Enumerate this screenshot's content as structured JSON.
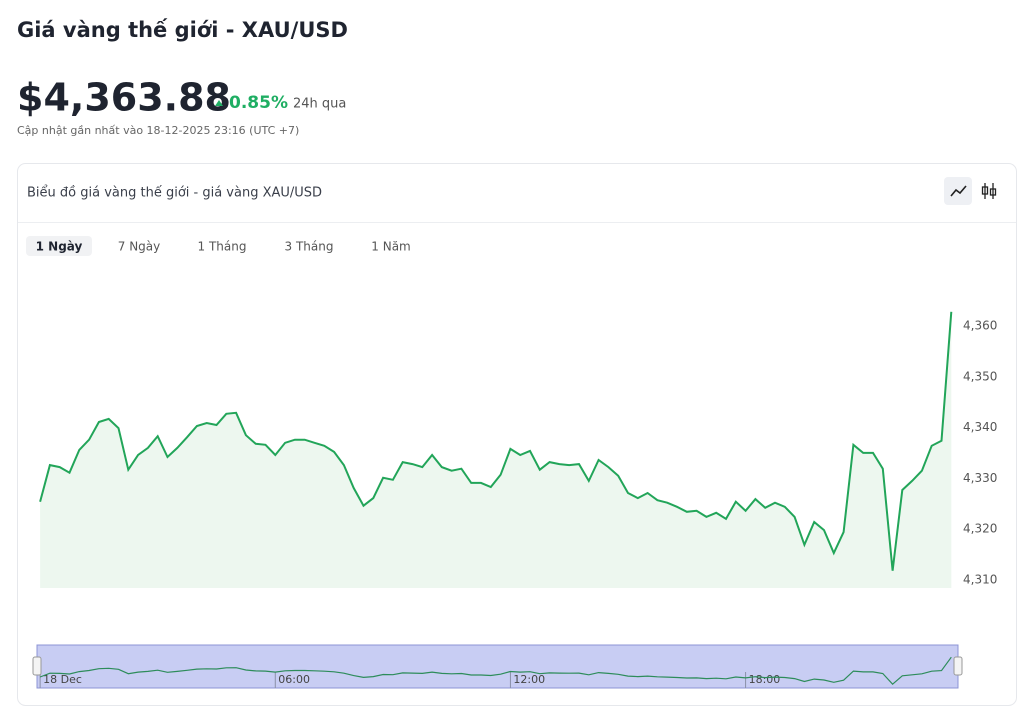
{
  "header": {
    "title": "Giá vàng thế giới - XAU/USD",
    "price": "$4,363.88",
    "change": "0.85%",
    "period": "24h qua",
    "updated": "Cập nhật gần nhất vào 18-12-2025 23:16 (UTC +7)"
  },
  "card": {
    "title": "Biểu đồ giá vàng thế giới - giá vàng XAU/USD",
    "tabs": [
      "1 Ngày",
      "7 Ngày",
      "1 Tháng",
      "3 Tháng",
      "1 Năm"
    ]
  },
  "chart_data": {
    "type": "line",
    "color": "#22a559",
    "area_color": "#edf7ef",
    "x": [
      0,
      0.25,
      0.5,
      0.75,
      1,
      1.25,
      1.5,
      1.75,
      2,
      2.25,
      2.5,
      2.75,
      3,
      3.25,
      3.5,
      3.75,
      4,
      4.25,
      4.5,
      4.75,
      5,
      5.25,
      5.5,
      5.75,
      6,
      6.25,
      6.5,
      6.75,
      7,
      7.25,
      7.5,
      7.75,
      8,
      8.25,
      8.5,
      8.75,
      9,
      9.25,
      9.5,
      9.75,
      10,
      10.25,
      10.5,
      10.75,
      11,
      11.25,
      11.5,
      11.75,
      12,
      12.25,
      12.5,
      12.75,
      13,
      13.25,
      13.5,
      13.75,
      14,
      14.25,
      14.5,
      14.75,
      15,
      15.25,
      15.5,
      15.75,
      16,
      16.25,
      16.5,
      16.75,
      17,
      17.25,
      17.5,
      17.75,
      18,
      18.25,
      18.5,
      18.75,
      19,
      19.25,
      19.5,
      19.75,
      20,
      20.25,
      20.5,
      20.75,
      21,
      21.25,
      21.5,
      21.75,
      22,
      22.25,
      22.5,
      22.75,
      23,
      23.25
    ],
    "values": [
      4325.4,
      4332.6,
      4332.2,
      4331.1,
      4335.6,
      4337.6,
      4341.1,
      4341.7,
      4339.9,
      4331.7,
      4334.6,
      4336.0,
      4338.3,
      4334.2,
      4336.0,
      4338.1,
      4340.3,
      4340.9,
      4340.5,
      4342.7,
      4342.9,
      4338.5,
      4336.8,
      4336.6,
      4334.6,
      4337.0,
      4337.6,
      4337.6,
      4337.0,
      4336.4,
      4335.2,
      4332.6,
      4328.1,
      4324.6,
      4326.1,
      4330.1,
      4329.7,
      4333.2,
      4332.8,
      4332.2,
      4334.6,
      4332.2,
      4331.5,
      4331.9,
      4329.1,
      4329.1,
      4328.3,
      4330.7,
      4335.8,
      4334.6,
      4335.4,
      4331.7,
      4333.2,
      4332.8,
      4332.6,
      4332.8,
      4329.5,
      4333.6,
      4332.2,
      4330.5,
      4327.1,
      4326.1,
      4327.1,
      4325.7,
      4325.2,
      4324.4,
      4323.4,
      4323.6,
      4322.4,
      4323.2,
      4322.0,
      4325.4,
      4323.6,
      4325.9,
      4324.2,
      4325.2,
      4324.4,
      4322.4,
      4316.9,
      4321.4,
      4319.8,
      4315.3,
      4319.4,
      4336.6,
      4335.0,
      4335.0,
      4331.9,
      4311.8,
      4327.7,
      4329.5,
      4331.5,
      4336.4,
      4337.4,
      4362.8
    ],
    "xlim": [
      -0.08,
      23.42
    ],
    "ylim": [
      4308.4,
      4365
    ],
    "yticks": [
      {
        "value": 4310,
        "label": "4,310"
      },
      {
        "value": 4320,
        "label": "4,320"
      },
      {
        "value": 4330,
        "label": "4,330"
      },
      {
        "value": 4340,
        "label": "4,340"
      },
      {
        "value": 4350,
        "label": "4,350"
      },
      {
        "value": 4360,
        "label": "4,360"
      }
    ],
    "xticks": [
      {
        "value": 0,
        "label": "18 Dec"
      },
      {
        "value": 6,
        "label": "06:00"
      },
      {
        "value": 12,
        "label": "12:00"
      },
      {
        "value": 18,
        "label": "18:00"
      }
    ]
  }
}
